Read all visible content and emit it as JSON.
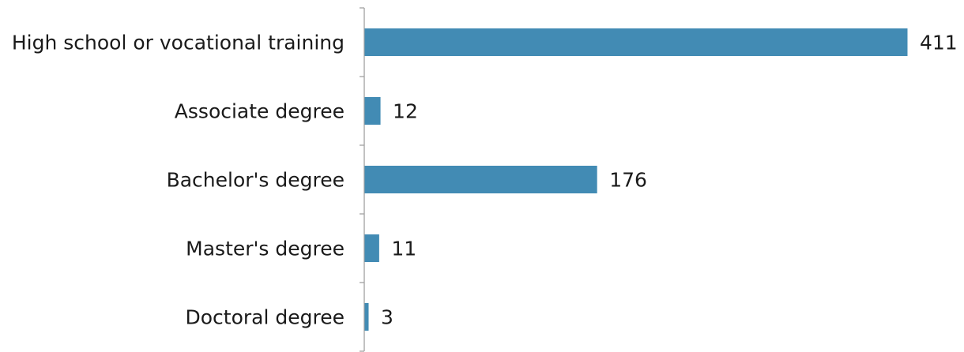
{
  "chart_data": {
    "type": "bar",
    "orientation": "horizontal",
    "categories": [
      "High school or vocational training",
      "Associate degree",
      "Bachelor's degree",
      "Master's degree",
      "Doctoral degree"
    ],
    "values": [
      411,
      12,
      176,
      11,
      3
    ],
    "bar_color": "#428bb4",
    "axis_color": "#a0a0a0",
    "text_color": "#1a1a1a",
    "xlim": [
      0,
      411
    ],
    "grid": false,
    "legend": "none",
    "data_labels": true
  }
}
